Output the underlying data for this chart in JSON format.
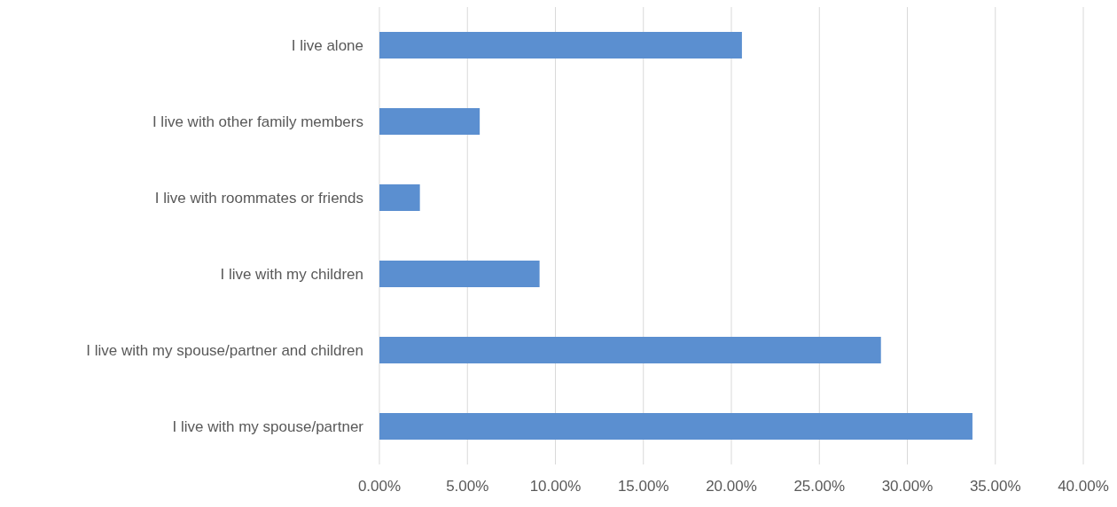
{
  "chart_data": {
    "type": "bar",
    "orientation": "horizontal",
    "categories": [
      "I live alone",
      "I live with other family members",
      "I live with roommates or friends",
      "I live with my children",
      "I live with my spouse/partner and children",
      "I live with my spouse/partner"
    ],
    "values": [
      20.6,
      5.7,
      2.3,
      9.1,
      28.5,
      33.7
    ],
    "color": "#5b8fd0",
    "xlim": [
      0,
      40
    ],
    "xticks": [
      {
        "value": 0,
        "label": "0.00%"
      },
      {
        "value": 5,
        "label": "5.00%"
      },
      {
        "value": 10,
        "label": "10.00%"
      },
      {
        "value": 15,
        "label": "15.00%"
      },
      {
        "value": 20,
        "label": "20.00%"
      },
      {
        "value": 25,
        "label": "25.00%"
      },
      {
        "value": 30,
        "label": "30.00%"
      },
      {
        "value": 35,
        "label": "35.00%"
      },
      {
        "value": 40,
        "label": "40.00%"
      }
    ],
    "grid": "x"
  }
}
